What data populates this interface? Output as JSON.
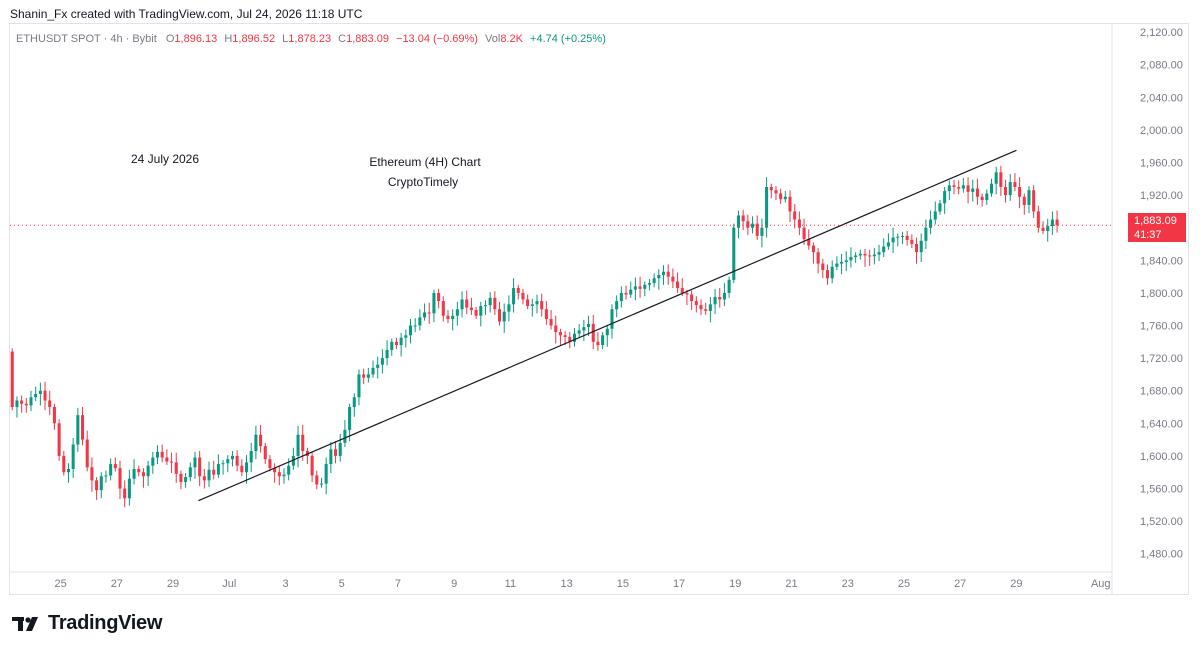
{
  "header": {
    "credit": "Shanin_Fx created with TradingView.com, Jul 24, 2026 11:18 UTC"
  },
  "legend": {
    "symbol": "ETHUSDT SPOT · 4h · Bybit",
    "o_label": "O",
    "o": "1,896.13",
    "h_label": "H",
    "h": "1,896.52",
    "l_label": "L",
    "l": "1,878.23",
    "c_label": "C",
    "c": "1,883.09",
    "change": "−13.04 (−0.69%)",
    "vol_label": "Vol",
    "vol": "8.2K",
    "vol_change": "+4.74 (+0.25%)"
  },
  "annotations": {
    "date": "24 July 2026",
    "title": "Ethereum (4H) Chart",
    "subtitle": "CryptoTimely"
  },
  "price_label": {
    "value": "1,883.09",
    "countdown": "41:37"
  },
  "brand": {
    "name": "TradingView"
  },
  "colors": {
    "up": "#089981",
    "down": "#f23645",
    "trendline": "#131722",
    "axis_text": "#787b86"
  },
  "chart_data": {
    "type": "candlestick",
    "symbol": "ETHUSDT",
    "interval": "4h",
    "ylim": [
      1460,
      2130
    ],
    "y_ticks": [
      "2,120.00",
      "2,080.00",
      "2,040.00",
      "2,000.00",
      "1,960.00",
      "1,920.00",
      "1,880.00",
      "1,840.00",
      "1,800.00",
      "1,760.00",
      "1,720.00",
      "1,680.00",
      "1,640.00",
      "1,600.00",
      "1,560.00",
      "1,520.00",
      "1,480.00"
    ],
    "x_ticks": [
      "25",
      "27",
      "29",
      "Jul",
      "3",
      "5",
      "7",
      "9",
      "11",
      "13",
      "15",
      "17",
      "19",
      "21",
      "23",
      "25",
      "27",
      "29",
      "Aug"
    ],
    "x_ticks_day": [
      25,
      27,
      29,
      31,
      33,
      35,
      37,
      39,
      41,
      43,
      45,
      47,
      49,
      51,
      53,
      55,
      57,
      59,
      62
    ],
    "x_range_day": [
      23.2,
      62.4
    ],
    "last_price": 1883.09,
    "trendline": {
      "from": [
        29.9,
        1545
      ],
      "to": [
        59.0,
        1975
      ]
    },
    "series": [
      {
        "close": [
          1660,
          1668,
          1664,
          1662,
          1672,
          1676,
          1680,
          1668,
          1660,
          1640,
          1600,
          1580,
          1584,
          1614,
          1650,
          1620,
          1586,
          1570,
          1558,
          1575,
          1576,
          1590,
          1585,
          1560,
          1548,
          1572,
          1584,
          1580,
          1575,
          1588,
          1598,
          1605,
          1598,
          1593,
          1592,
          1578,
          1568,
          1574,
          1586,
          1598,
          1575,
          1570,
          1583,
          1577,
          1590,
          1591,
          1596,
          1600,
          1588,
          1580,
          1592,
          1606,
          1626,
          1612,
          1596,
          1585,
          1580,
          1575,
          1577,
          1588,
          1600,
          1626,
          1606,
          1600,
          1576,
          1565,
          1566,
          1590,
          1608,
          1600,
          1616,
          1632,
          1660,
          1672,
          1700,
          1696,
          1700,
          1708,
          1712,
          1720,
          1730,
          1740,
          1736,
          1745,
          1748,
          1760,
          1760,
          1770,
          1776,
          1775,
          1800,
          1790,
          1772,
          1768,
          1772,
          1780,
          1792,
          1782,
          1779,
          1772,
          1784,
          1785,
          1794,
          1780,
          1765,
          1777,
          1786,
          1806,
          1800,
          1792,
          1784,
          1786,
          1790,
          1780,
          1768,
          1760,
          1752,
          1748,
          1746,
          1740,
          1750,
          1754,
          1758,
          1762,
          1740,
          1736,
          1748,
          1756,
          1780,
          1790,
          1800,
          1798,
          1804,
          1808,
          1805,
          1810,
          1812,
          1818,
          1822,
          1826,
          1820,
          1814,
          1806,
          1800,
          1798,
          1790,
          1785,
          1780,
          1778,
          1786,
          1795,
          1792,
          1800,
          1816,
          1880,
          1895,
          1888,
          1880,
          1885,
          1870,
          1880,
          1930,
          1926,
          1922,
          1915,
          1918,
          1900,
          1890,
          1880,
          1866,
          1858,
          1850,
          1836,
          1828,
          1818,
          1832,
          1836,
          1838,
          1840,
          1844,
          1846,
          1848,
          1846,
          1845,
          1847,
          1850,
          1857,
          1862,
          1868,
          1869,
          1870,
          1865,
          1860,
          1850,
          1864,
          1880,
          1890,
          1900,
          1910,
          1925,
          1932,
          1930,
          1928,
          1932,
          1924,
          1928,
          1918,
          1914,
          1922,
          1934,
          1948,
          1930,
          1920,
          1936,
          1930,
          1918,
          1908,
          1926,
          1900,
          1880,
          1876,
          1882,
          1890,
          1883
        ]
      }
    ]
  }
}
